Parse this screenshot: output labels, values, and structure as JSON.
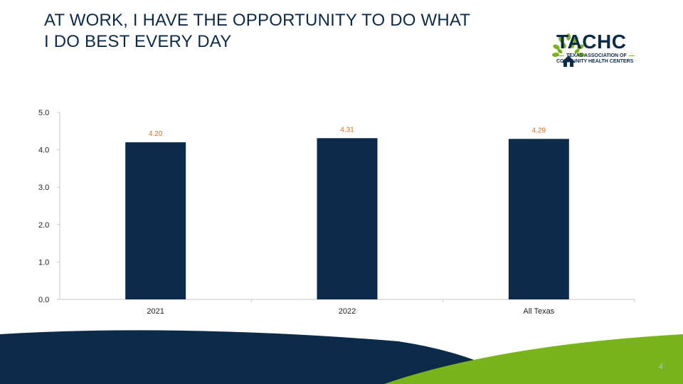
{
  "slide": {
    "title_line1": "AT WORK, I HAVE THE OPPORTUNITY TO DO WHAT",
    "title_line2": "I DO BEST EVERY DAY",
    "page_number": "4"
  },
  "logo": {
    "name": "TACHC",
    "sub_line1": "TEXAS ASSOCIATION OF",
    "sub_line2": "COMMUNITY HEALTH CENTERS",
    "colors": {
      "navy": "#0c2b4a",
      "green": "#7ab41c"
    }
  },
  "chart_data": {
    "type": "bar",
    "categories": [
      "2021",
      "2022",
      "All Texas"
    ],
    "values": [
      4.2,
      4.31,
      4.29
    ],
    "value_labels": [
      "4.20",
      "4.31",
      "4.29"
    ],
    "yticks": [
      "0.0",
      "1.0",
      "2.0",
      "3.0",
      "4.0",
      "5.0"
    ],
    "ylim": [
      0,
      5
    ],
    "grid": false,
    "bar_color": "#0c2b4a",
    "label_color": "#e06a1a"
  }
}
